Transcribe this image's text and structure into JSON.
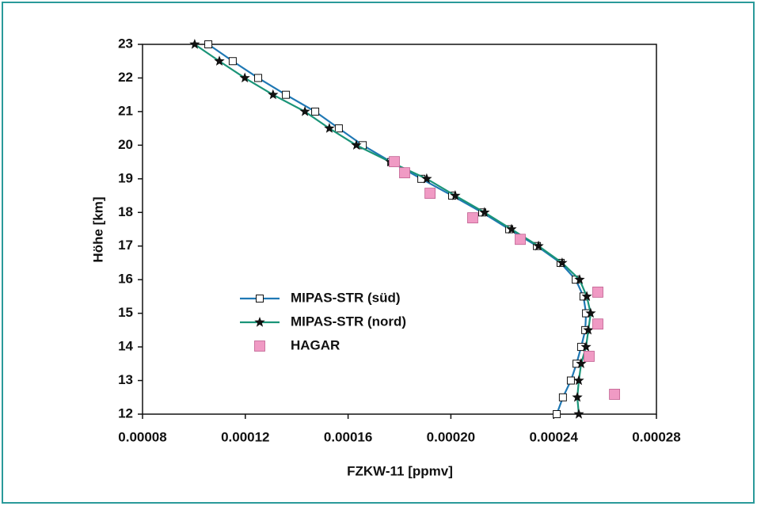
{
  "chart_data": {
    "type": "line",
    "xlabel": "FZKW-11 [ppmv]",
    "ylabel": "Höhe [km]",
    "xlim": [
      8e-05,
      0.00028
    ],
    "ylim": [
      12,
      23
    ],
    "xticks": [
      {
        "value": 8e-05,
        "label": "0.00008"
      },
      {
        "value": 0.00012,
        "label": "0.00012"
      },
      {
        "value": 0.00016,
        "label": "0.00016"
      },
      {
        "value": 0.0002,
        "label": "0.00020"
      },
      {
        "value": 0.00024,
        "label": "0.00024"
      },
      {
        "value": 0.00028,
        "label": "0.00028"
      }
    ],
    "yticks": [
      12,
      13,
      14,
      15,
      16,
      17,
      18,
      19,
      20,
      21,
      22,
      23
    ],
    "legend": "center-left",
    "series": [
      {
        "name": "MIPAS-STR (süd)",
        "color": "#1f78b4",
        "marker": "square",
        "y": [
          23,
          22.5,
          22,
          21.5,
          21,
          20.5,
          20,
          19.5,
          19,
          18.5,
          18,
          17.5,
          17,
          16.5,
          16,
          15.5,
          15,
          14.5,
          14,
          13.5,
          13,
          12.5,
          12
        ],
        "x": [
          0.0001056,
          0.0001151,
          0.000125,
          0.0001358,
          0.0001472,
          0.0001564,
          0.0001657,
          0.0001768,
          0.0001885,
          0.0002005,
          0.0002122,
          0.0002227,
          0.0002335,
          0.0002427,
          0.0002486,
          0.0002516,
          0.0002526,
          0.0002523,
          0.0002507,
          0.0002489,
          0.0002467,
          0.0002436,
          0.0002412
        ]
      },
      {
        "name": "MIPAS-STR (nord)",
        "color": "#1a9478",
        "marker": "star",
        "y": [
          23,
          22.5,
          22,
          21.5,
          21,
          20.5,
          20,
          19.5,
          19,
          18.5,
          18,
          17.5,
          17,
          16.5,
          16,
          15.5,
          15,
          14.5,
          14,
          13.5,
          13,
          12.5,
          12
        ],
        "x": [
          0.0001003,
          0.0001099,
          0.0001198,
          0.0001308,
          0.0001432,
          0.0001527,
          0.0001632,
          0.0001765,
          0.0001906,
          0.0002017,
          0.0002131,
          0.0002236,
          0.0002341,
          0.0002433,
          0.0002501,
          0.0002529,
          0.0002544,
          0.0002535,
          0.0002526,
          0.0002507,
          0.0002498,
          0.0002492,
          0.0002498
        ]
      },
      {
        "name": "HAGAR",
        "color": "#f09ac4",
        "marker": "bigsquare",
        "line": false,
        "y": [
          19.51,
          19.18,
          18.57,
          17.84,
          17.2,
          15.63,
          14.68,
          13.72,
          12.59
        ],
        "x": [
          0.000178,
          0.000182,
          0.0001919,
          0.0002085,
          0.000227,
          0.0002572,
          0.0002572,
          0.0002538,
          0.0002637
        ]
      }
    ]
  }
}
